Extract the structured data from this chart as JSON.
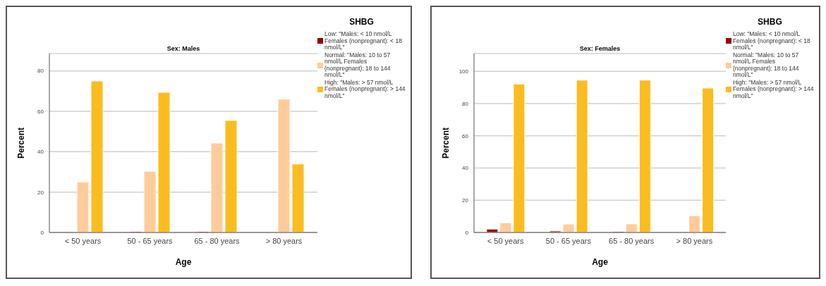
{
  "chart_data": [
    {
      "type": "bar",
      "title": "Sex: Males",
      "xlabel": "Age",
      "ylabel": "Percent",
      "legend_title": "SHBG",
      "legend": "right",
      "grid": "y",
      "categories": [
        "< 50 years",
        "50 - 65 years",
        "65 - 80 years",
        "> 80 years"
      ],
      "series": [
        {
          "name": "Low: \"Males: < 10 nmol/L Females (nonpregnant): < 18 nmol/L\"",
          "color": "#990000",
          "values": [
            0,
            0.5,
            0.5,
            0
          ]
        },
        {
          "name": "Normal: \"Males: 10 to 57 nmol/L Females (nonpregnant): 18 to 144 nmol/L\"",
          "color": "#ffcc99",
          "values": [
            25,
            30.3,
            44.3,
            66
          ]
        },
        {
          "name": "High: \"Males: > 57 nmol/L Females (nonpregnant): > 144 nmol/L\"",
          "color": "#fbbc1f",
          "values": [
            75,
            69.4,
            55.5,
            33.9
          ]
        }
      ],
      "ylim": [
        0,
        88.6
      ],
      "yticks": [
        0,
        20,
        40,
        60,
        80
      ]
    },
    {
      "type": "bar",
      "title": "Sex: Females",
      "xlabel": "Age",
      "ylabel": "Percent",
      "legend_title": "SHBG",
      "legend": "right",
      "grid": "y",
      "categories": [
        "< 50 years",
        "50 - 65 years",
        "65 - 80 years",
        "> 80 years"
      ],
      "series": [
        {
          "name": "Low: \"Males: < 10 nmol/L Females (nonpregnant): < 18 nmol/L\"",
          "color": "#990000",
          "values": [
            2.1,
            0.9,
            0.6,
            0
          ]
        },
        {
          "name": "Normal: \"Males: 10 to 57 nmol/L Females (nonpregnant): 18 to 144 nmol/L\"",
          "color": "#ffcc99",
          "values": [
            6,
            5.2,
            5.3,
            10.4
          ]
        },
        {
          "name": "High: \"Males: > 57 nmol/L Females (nonpregnant): > 144 nmol/L\"",
          "color": "#fbbc1f",
          "values": [
            92.1,
            94.5,
            94.5,
            89.6
          ]
        }
      ],
      "ylim": [
        0,
        111
      ],
      "yticks": [
        0,
        20,
        40,
        60,
        80,
        100
      ]
    }
  ]
}
